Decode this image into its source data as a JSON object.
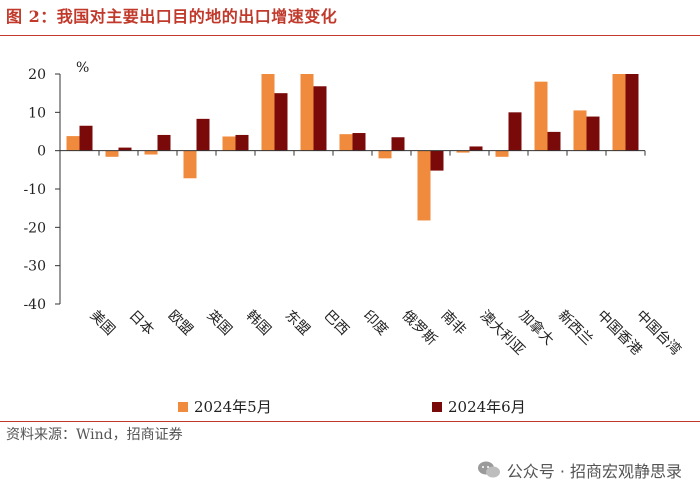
{
  "title": "图 2：我国对主要出口目的地的出口增速变化",
  "source": "资料来源：Wind，招商证券",
  "watermark": "公众号 · 招商宏观静思录",
  "colors": {
    "series1": "#f08a3c",
    "series2": "#7a0a0a",
    "accent": "#c0392b"
  },
  "chart_data": {
    "type": "bar",
    "ylabel": "%",
    "ylim": [
      -40,
      20
    ],
    "yticks": [
      20,
      10,
      0,
      -10,
      -20,
      -30,
      -40
    ],
    "categories": [
      "美国",
      "日本",
      "欧盟",
      "英国",
      "韩国",
      "东盟",
      "巴西",
      "印度",
      "俄罗斯",
      "南非",
      "澳大利亚",
      "加拿大",
      "新西兰",
      "中国香港",
      "中国台湾"
    ],
    "series": [
      {
        "name": "2024年5月",
        "values": [
          3.8,
          -1.6,
          -1.0,
          -7.2,
          3.7,
          20.0,
          20.0,
          4.3,
          -2.0,
          -18.2,
          -0.5,
          -1.6,
          18.0,
          10.5,
          20.0
        ]
      },
      {
        "name": "2024年6月",
        "values": [
          6.5,
          0.8,
          4.1,
          8.3,
          4.1,
          15.0,
          16.8,
          4.6,
          3.5,
          -5.2,
          1.1,
          10.0,
          4.9,
          8.9,
          20.0
        ]
      }
    ]
  }
}
